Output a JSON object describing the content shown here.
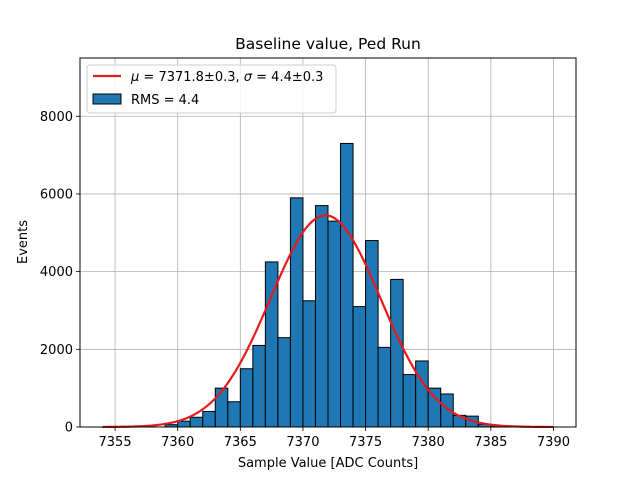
{
  "chart_data": {
    "type": "bar",
    "title": "Baseline value, Ped Run",
    "xlabel": "Sample Value [ADC Counts]",
    "ylabel": "Events",
    "xlim": [
      7352.2,
      7391.8
    ],
    "ylim": [
      0,
      9500
    ],
    "xticks": [
      7355,
      7360,
      7365,
      7370,
      7375,
      7380,
      7385,
      7390
    ],
    "yticks": [
      0,
      2000,
      4000,
      6000,
      8000
    ],
    "grid": true,
    "legend_position": "top-left",
    "histogram": {
      "name": "RMS = 4.4",
      "color": "#1f77b4",
      "edge_color": "#000000",
      "bin_start": 7359,
      "bin_width": 1,
      "counts": [
        60,
        150,
        250,
        400,
        1000,
        650,
        1500,
        2100,
        4250,
        2300,
        5900,
        3250,
        5700,
        5300,
        7300,
        3100,
        4800,
        2050,
        3800,
        1350,
        1700,
        1000,
        850,
        300,
        280,
        70,
        30
      ]
    },
    "fit": {
      "name": "μ = 7371.8±0.3, σ = 4.4±0.3",
      "legend_parts": [
        "μ",
        " = 7371.8±0.3, ",
        "σ",
        " = 4.4±0.3"
      ],
      "color": "#e41a1c",
      "function": "gaussian",
      "amplitude": 5450,
      "mu": 7371.8,
      "sigma": 4.4,
      "x_range": [
        7354,
        7390
      ]
    }
  }
}
